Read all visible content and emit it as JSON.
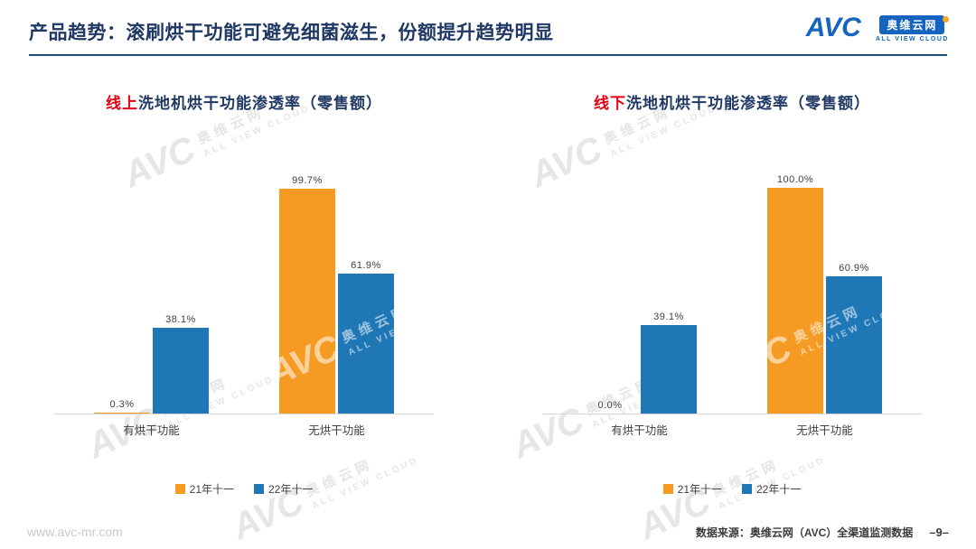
{
  "header": {
    "title": "产品趋势：滚刷烘干功能可避免细菌滋生，份额提升趋势明显",
    "logo": {
      "brand": "AVC",
      "name": "奥维云网",
      "tagline": "ALL VIEW CLOUD"
    }
  },
  "watermark": {
    "brand": "AVC",
    "name": "奥维云网",
    "tagline": "ALL VIEW CLOUD"
  },
  "chart_data": [
    {
      "type": "bar",
      "title": "线上洗地机烘干功能渗透率（零售额）",
      "title_highlight": "线上",
      "title_rest": "洗地机烘干功能渗透率（零售额）",
      "categories": [
        "有烘干功能",
        "无烘干功能"
      ],
      "series": [
        {
          "name": "21年十一",
          "color": "#F59A23",
          "values": [
            0.3,
            99.7
          ]
        },
        {
          "name": "22年十一",
          "color": "#2077B5",
          "values": [
            38.1,
            61.9
          ]
        }
      ],
      "unit": "%",
      "ylim": [
        0,
        100
      ],
      "grid": false,
      "value_labels": true,
      "legend_position": "bottom"
    },
    {
      "type": "bar",
      "title": "线下洗地机烘干功能渗透率（零售额）",
      "title_highlight": "线下",
      "title_rest": "洗地机烘干功能渗透率（零售额）",
      "categories": [
        "有烘干功能",
        "无烘干功能"
      ],
      "series": [
        {
          "name": "21年十一",
          "color": "#F59A23",
          "values": [
            0.0,
            100.0
          ]
        },
        {
          "name": "22年十一",
          "color": "#2077B5",
          "values": [
            39.1,
            60.9
          ]
        }
      ],
      "unit": "%",
      "ylim": [
        0,
        100
      ],
      "grid": false,
      "value_labels": true,
      "legend_position": "bottom"
    }
  ],
  "footer": {
    "website": "www.avc-mr.com",
    "source": "数据来源：奥维云网（AVC）全渠道监测数据",
    "page": "–9–"
  }
}
